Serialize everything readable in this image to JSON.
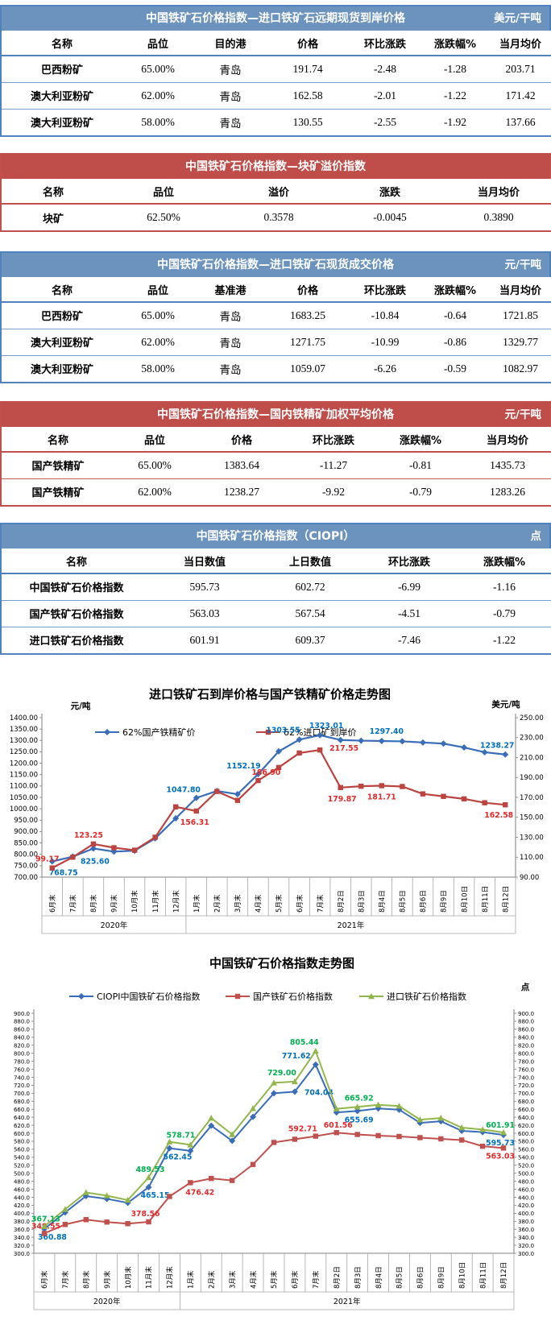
{
  "tables": [
    {
      "id": "forward-cfr",
      "theme": "blue",
      "title": "中国铁矿石价格指数—进口铁矿石远期现货到岸价格",
      "unit": "美元/干吨",
      "headers": [
        "名称",
        "品位",
        "目的港",
        "价格",
        "环比涨跌",
        "涨跌幅%",
        "当月均价"
      ],
      "rows": [
        [
          "巴西粉矿",
          "65.00%",
          "青岛",
          "191.74",
          "-2.48",
          "-1.28",
          "203.71"
        ],
        [
          "澳大利亚粉矿",
          "62.00%",
          "青岛",
          "162.58",
          "-2.01",
          "-1.22",
          "171.42"
        ],
        [
          "澳大利亚粉矿",
          "58.00%",
          "青岛",
          "130.55",
          "-2.55",
          "-1.92",
          "137.66"
        ]
      ]
    },
    {
      "id": "lump-premium",
      "theme": "red",
      "title": "中国铁矿石价格指数—块矿溢价指数",
      "unit": "",
      "headers": [
        "名称",
        "品位",
        "溢价",
        "涨跌",
        "当月均价"
      ],
      "rows": [
        [
          "块矿",
          "62.50%",
          "0.3578",
          "-0.0045",
          "0.3890"
        ]
      ]
    },
    {
      "id": "spot-transaction",
      "theme": "blue",
      "title": "中国铁矿石价格指数—进口铁矿石现货成交价格",
      "unit": "元/干吨",
      "headers": [
        "名称",
        "品位",
        "基准港",
        "价格",
        "环比涨跌",
        "涨跌幅%",
        "当月均价"
      ],
      "rows": [
        [
          "巴西粉矿",
          "65.00%",
          "青岛",
          "1683.25",
          "-10.84",
          "-0.64",
          "1721.85"
        ],
        [
          "澳大利亚粉矿",
          "62.00%",
          "青岛",
          "1271.75",
          "-10.99",
          "-0.86",
          "1329.77"
        ],
        [
          "澳大利亚粉矿",
          "58.00%",
          "青岛",
          "1059.07",
          "-6.26",
          "-0.59",
          "1082.97"
        ]
      ]
    },
    {
      "id": "domestic-concentrate",
      "theme": "red",
      "title": "中国铁矿石价格指数—国内铁精矿加权平均价格",
      "unit": "元/干吨",
      "headers": [
        "名称",
        "品位",
        "价格",
        "环比涨跌",
        "涨跌幅%",
        "当月均价"
      ],
      "rows": [
        [
          "国产铁精矿",
          "65.00%",
          "1383.64",
          "-11.27",
          "-0.81",
          "1435.73"
        ],
        [
          "国产铁精矿",
          "62.00%",
          "1238.27",
          "-9.92",
          "-0.79",
          "1283.26"
        ]
      ]
    },
    {
      "id": "ciopi",
      "theme": "blue",
      "title": "中国铁矿石价格指数（CIOPI）",
      "unit": "点",
      "headers": [
        "名称",
        "当日数值",
        "上日数值",
        "环比涨跌",
        "涨跌幅%"
      ],
      "rows": [
        [
          "中国铁矿石价格指数",
          "595.73",
          "602.72",
          "-6.99",
          "-1.16"
        ],
        [
          "国产铁矿石价格指数",
          "563.03",
          "567.54",
          "-4.51",
          "-0.79"
        ],
        [
          "进口铁矿石价格指数",
          "601.91",
          "609.37",
          "-7.46",
          "-1.22"
        ]
      ]
    }
  ],
  "chart_data": [
    {
      "type": "line",
      "mount": "chart-price-trend",
      "title": "进口铁矿石到岸价格与国产铁精矿价格走势图",
      "left_axis": {
        "unit": "元/吨",
        "min": 700,
        "max": 1400,
        "step": 50,
        "decimals": 2
      },
      "right_axis": {
        "unit": "美元/吨",
        "min": 90,
        "max": 250,
        "step": 20,
        "decimals": 2
      },
      "categories": [
        "6月末",
        "7月末",
        "8月末",
        "9月末",
        "10月末",
        "11月末",
        "12月末",
        "1月末",
        "2月末",
        "3月末",
        "4月末",
        "5月末",
        "6月末",
        "7月末",
        "8月2日",
        "8月3日",
        "8月4日",
        "8月5日",
        "8月6日",
        "8月9日",
        "8月10日",
        "8月11日",
        "8月12日"
      ],
      "year_groups": [
        {
          "label": "2020年",
          "count": 7
        },
        {
          "label": "2021年",
          "count": 16
        }
      ],
      "legend_position": "top",
      "grid": false,
      "series": [
        {
          "name": "62%国产铁精矿价",
          "axis": "left",
          "color": "#3a6db8",
          "label_color": "#0070c0",
          "marker": "diamond",
          "values": [
            768.75,
            790,
            825.6,
            812,
            816,
            870,
            958,
            1047.8,
            1078,
            1064,
            1152.19,
            1252,
            1303.55,
            1323.01,
            1302,
            1299,
            1297.4,
            1296,
            1291,
            1286,
            1269,
            1248.19,
            1238.27
          ],
          "point_labels": [
            {
              "i": 0,
              "t": "768.75",
              "dx": 14,
              "dy": 17
            },
            {
              "i": 2,
              "t": "825.60",
              "dx": 2,
              "dy": 19
            },
            {
              "i": 7,
              "t": "1047.80",
              "dx": -16,
              "dy": -7
            },
            {
              "i": 10,
              "t": "1152.19",
              "dx": -18,
              "dy": -7
            },
            {
              "i": 12,
              "t": "1303.55",
              "dx": -20,
              "dy": -9
            },
            {
              "i": 13,
              "t": "1323.01",
              "dx": 8,
              "dy": -9
            },
            {
              "i": 16,
              "t": "1297.40",
              "dx": 6,
              "dy": -9
            },
            {
              "i": 22,
              "t": "1238.27",
              "dx": -10,
              "dy": -8
            }
          ]
        },
        {
          "name": "62%进口矿到岸价",
          "axis": "right",
          "color": "#bb4340",
          "label_color": "#e02a2a",
          "marker": "square",
          "values": [
            99.17,
            110,
            123.25,
            119.5,
            117,
            130,
            160.5,
            156.31,
            176,
            167,
            186.9,
            200,
            214.5,
            217.55,
            179.87,
            181.2,
            181.71,
            180.9,
            173.5,
            171,
            168.5,
            164.59,
            162.58
          ],
          "point_labels": [
            {
              "i": 0,
              "t": "99.17",
              "dx": -6,
              "dy": -8
            },
            {
              "i": 2,
              "t": "123.25",
              "dx": -6,
              "dy": -8
            },
            {
              "i": 7,
              "t": "156.31",
              "dx": -2,
              "dy": 17
            },
            {
              "i": 10,
              "t": "186.90",
              "dx": 10,
              "dy": -7
            },
            {
              "i": 13,
              "t": "217.55",
              "dx": 30,
              "dy": 1
            },
            {
              "i": 14,
              "t": "179.87",
              "dx": 2,
              "dy": 17
            },
            {
              "i": 16,
              "t": "181.71",
              "dx": 0,
              "dy": 17
            },
            {
              "i": 22,
              "t": "162.58",
              "dx": -8,
              "dy": 16
            }
          ]
        }
      ]
    },
    {
      "type": "line",
      "mount": "chart-index-trend",
      "title": "中国铁矿石价格指数走势图",
      "left_axis": {
        "unit": "",
        "min": 300,
        "max": 900,
        "step": 20,
        "decimals": 1
      },
      "right_axis": {
        "unit": "点",
        "min": 300,
        "max": 900,
        "step": 20,
        "decimals": 1
      },
      "categories": [
        "6月末",
        "7月末",
        "8月末",
        "9月末",
        "10月末",
        "11月末",
        "12月末",
        "1月末",
        "2月末",
        "3月末",
        "4月末",
        "5月末",
        "6月末",
        "7月末",
        "8月2日",
        "8月3日",
        "8月4日",
        "8月5日",
        "8月6日",
        "8月9日",
        "8月10日",
        "8月11日",
        "8月12日"
      ],
      "year_groups": [
        {
          "label": "2020年",
          "count": 7
        },
        {
          "label": "2021年",
          "count": 16
        }
      ],
      "legend_position": "top",
      "grid": false,
      "series": [
        {
          "name": "CIOPI中国铁矿石价格指数",
          "axis": "left",
          "color": "#3a6db8",
          "label_color": "#0070c0",
          "marker": "diamond",
          "values": [
            360.88,
            402,
            443,
            436,
            426,
            465.15,
            562.45,
            556,
            619,
            581,
            641,
            700,
            704.04,
            771.62,
            652,
            655.69,
            662,
            659,
            626,
            630,
            606,
            602.72,
            595.73
          ],
          "point_labels": [
            {
              "i": 0,
              "t": "360.88",
              "dx": 10,
              "dy": 13
            },
            {
              "i": 5,
              "t": "465.15",
              "dx": 8,
              "dy": 13
            },
            {
              "i": 6,
              "t": "562.45",
              "dx": 10,
              "dy": 14
            },
            {
              "i": 12,
              "t": "704.04",
              "dx": 30,
              "dy": 4
            },
            {
              "i": 13,
              "t": "771.62",
              "dx": -24,
              "dy": -8
            },
            {
              "i": 15,
              "t": "655.69",
              "dx": 2,
              "dy": 14
            },
            {
              "i": 22,
              "t": "595.73",
              "dx": -4,
              "dy": 13
            }
          ]
        },
        {
          "name": "国产铁矿石价格指数",
          "axis": "left",
          "color": "#c0504d",
          "label_color": "#e02a2a",
          "marker": "square",
          "values": [
            349.55,
            372,
            384,
            378,
            374,
            378.56,
            442,
            476.42,
            487,
            482,
            522,
            577,
            585,
            592.71,
            601.56,
            597,
            594,
            592,
            589,
            586,
            583,
            567.54,
            563.03
          ],
          "point_labels": [
            {
              "i": 0,
              "t": "349.55",
              "dx": 2,
              "dy": -6
            },
            {
              "i": 5,
              "t": "378.56",
              "dx": -4,
              "dy": -7
            },
            {
              "i": 7,
              "t": "476.42",
              "dx": 12,
              "dy": 15
            },
            {
              "i": 13,
              "t": "592.71",
              "dx": -16,
              "dy": -6
            },
            {
              "i": 14,
              "t": "601.56",
              "dx": 2,
              "dy": -6
            },
            {
              "i": 22,
              "t": "563.03",
              "dx": -4,
              "dy": 13
            }
          ]
        },
        {
          "name": "进口铁矿石价格指数",
          "axis": "left",
          "color": "#93b64c",
          "label_color": "#00b050",
          "marker": "triangle",
          "values": [
            367.13,
            410,
            452,
            444,
            433,
            489.53,
            578.71,
            571,
            638,
            597,
            662,
            726,
            729.0,
            805.44,
            661,
            665.92,
            671,
            668,
            634,
            638,
            614,
            609.37,
            601.91
          ],
          "point_labels": [
            {
              "i": 0,
              "t": "367.13",
              "dx": 2,
              "dy": -6
            },
            {
              "i": 5,
              "t": "489.53",
              "dx": 2,
              "dy": -7
            },
            {
              "i": 6,
              "t": "578.71",
              "dx": 14,
              "dy": -5
            },
            {
              "i": 12,
              "t": "729.00",
              "dx": -16,
              "dy": -8
            },
            {
              "i": 13,
              "t": "805.44",
              "dx": -14,
              "dy": -8
            },
            {
              "i": 15,
              "t": "665.92",
              "dx": 2,
              "dy": -8
            },
            {
              "i": 22,
              "t": "601.91",
              "dx": -4,
              "dy": -6
            }
          ]
        }
      ]
    }
  ]
}
